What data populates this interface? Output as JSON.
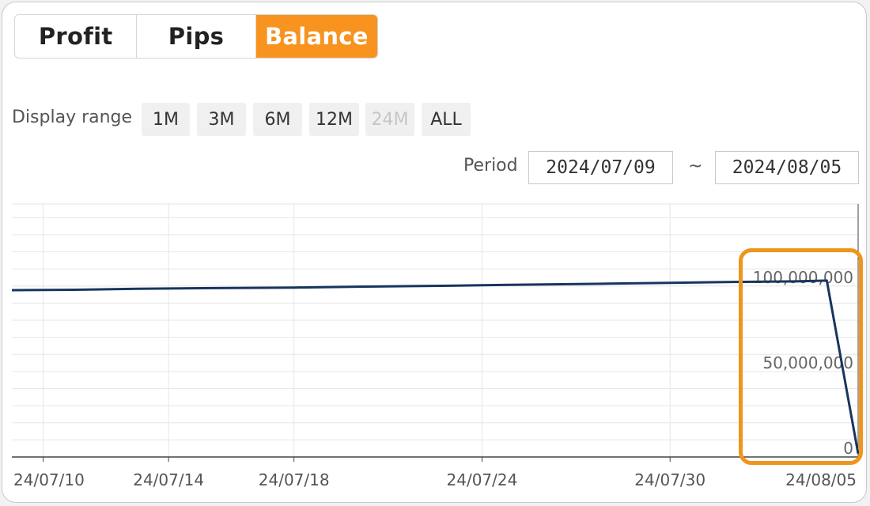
{
  "tabs": [
    {
      "label": "Profit",
      "active": false
    },
    {
      "label": "Pips",
      "active": false
    },
    {
      "label": "Balance",
      "active": true
    }
  ],
  "display_range": {
    "label": "Display range",
    "options": [
      {
        "label": "1M",
        "disabled": false
      },
      {
        "label": "3M",
        "disabled": false
      },
      {
        "label": "6M",
        "disabled": false
      },
      {
        "label": "12M",
        "disabled": false
      },
      {
        "label": "24M",
        "disabled": true
      },
      {
        "label": "ALL",
        "disabled": false
      }
    ]
  },
  "period": {
    "label": "Period",
    "start": "2024/07/09",
    "separator": "~",
    "end": "2024/08/05"
  },
  "colors": {
    "accent": "#f7931e",
    "line": "#17355f",
    "highlight": "#f0951c",
    "grid": "#e6e6e6"
  },
  "chart_data": {
    "type": "line",
    "title": "",
    "xlabel": "",
    "ylabel": "",
    "y_ticks": [
      {
        "value": 0,
        "label": "0"
      },
      {
        "value": 50000000,
        "label": "50,000,000"
      },
      {
        "value": 100000000,
        "label": "100,000,000"
      }
    ],
    "ylim": [
      0,
      148000000
    ],
    "x_ticks": [
      {
        "date": "2024-07-10",
        "label": "24/07/10"
      },
      {
        "date": "2024-07-14",
        "label": "24/07/14"
      },
      {
        "date": "2024-07-18",
        "label": "24/07/18"
      },
      {
        "date": "2024-07-24",
        "label": "24/07/24"
      },
      {
        "date": "2024-07-30",
        "label": "24/07/30"
      },
      {
        "date": "2024-08-05",
        "label": "24/08/05"
      }
    ],
    "xlim": [
      "2024-07-09",
      "2024-08-05"
    ],
    "series": [
      {
        "points": [
          {
            "x": "2024-07-09",
            "y": 97600000
          },
          {
            "x": "2024-07-11",
            "y": 97800000
          },
          {
            "x": "2024-07-13",
            "y": 98400000
          },
          {
            "x": "2024-07-16",
            "y": 98900000
          },
          {
            "x": "2024-07-18",
            "y": 99100000
          },
          {
            "x": "2024-07-20",
            "y": 99600000
          },
          {
            "x": "2024-07-23",
            "y": 100200000
          },
          {
            "x": "2024-07-24",
            "y": 100500000
          },
          {
            "x": "2024-07-26",
            "y": 100900000
          },
          {
            "x": "2024-07-28",
            "y": 101400000
          },
          {
            "x": "2024-07-30",
            "y": 101900000
          },
          {
            "x": "2024-08-01",
            "y": 102400000
          },
          {
            "x": "2024-08-03",
            "y": 102700000
          },
          {
            "x": "2024-08-04",
            "y": 103200000
          },
          {
            "x": "2024-08-05",
            "y": 2000000
          }
        ]
      }
    ],
    "grid": true,
    "highlighted_region": "end of series"
  }
}
